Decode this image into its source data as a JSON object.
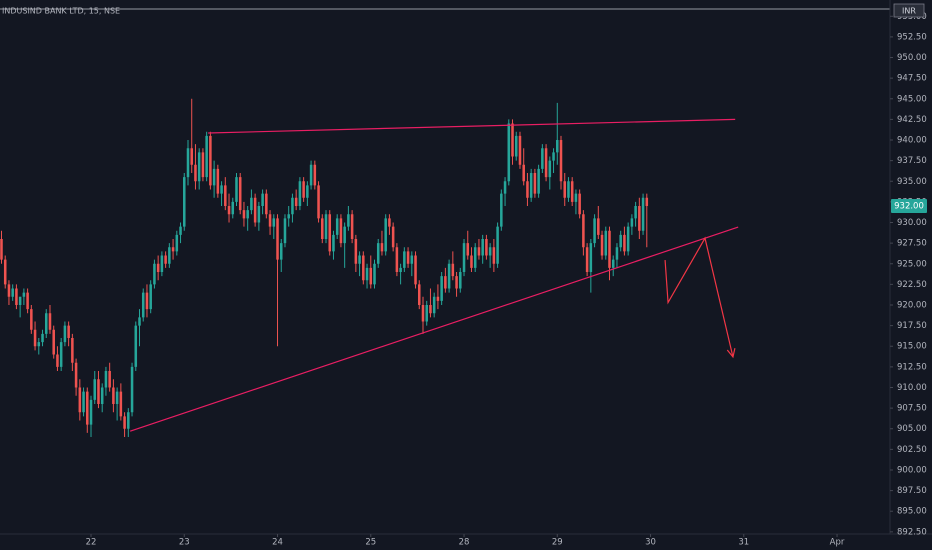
{
  "chart_data": {
    "type": "candlestick",
    "title": "INDUSIND BANK LTD, 15, NSE",
    "currency": "INR",
    "up_color": "#26a69a",
    "down_color": "#ef5350",
    "grid": false,
    "xlim": [
      -0.4,
      238.2
    ],
    "xticks": [
      {
        "value": 24,
        "label": "22"
      },
      {
        "value": 49,
        "label": "23"
      },
      {
        "value": 74,
        "label": "24"
      },
      {
        "value": 99,
        "label": "25"
      },
      {
        "value": 124,
        "label": "28"
      },
      {
        "value": 149,
        "label": "29"
      },
      {
        "value": 174,
        "label": "30"
      },
      {
        "value": 199,
        "label": "31"
      },
      {
        "value": 224,
        "label": "Apr"
      }
    ],
    "ylim": [
      892.24,
      955.76
    ],
    "yticks": [
      {
        "value": 892.5,
        "label": "892.50"
      },
      {
        "value": 895,
        "label": "895.00"
      },
      {
        "value": 897.5,
        "label": "897.50"
      },
      {
        "value": 900,
        "label": "900.00"
      },
      {
        "value": 902.5,
        "label": "902.50"
      },
      {
        "value": 905,
        "label": "905.00"
      },
      {
        "value": 907.5,
        "label": "907.50"
      },
      {
        "value": 910,
        "label": "910.00"
      },
      {
        "value": 912.5,
        "label": "912.50"
      },
      {
        "value": 915,
        "label": "915.00"
      },
      {
        "value": 917.5,
        "label": "917.50"
      },
      {
        "value": 920,
        "label": "920.00"
      },
      {
        "value": 922.5,
        "label": "922.50"
      },
      {
        "value": 925,
        "label": "925.00"
      },
      {
        "value": 927.5,
        "label": "927.50"
      },
      {
        "value": 930,
        "label": "930.00"
      },
      {
        "value": 932.5,
        "label": "932.50"
      },
      {
        "value": 935,
        "label": "935.00"
      },
      {
        "value": 937.5,
        "label": "937.50"
      },
      {
        "value": 940,
        "label": "940.00"
      },
      {
        "value": 942.5,
        "label": "942.50"
      },
      {
        "value": 945,
        "label": "945.00"
      },
      {
        "value": 947.5,
        "label": "947.50"
      },
      {
        "value": 950,
        "label": "950.00"
      },
      {
        "value": 952.5,
        "label": "952.50"
      },
      {
        "value": 955,
        "label": "955.00"
      }
    ],
    "last_price_label": "932.00",
    "ohlc": [
      [
        928,
        929,
        925,
        925.5
      ],
      [
        925.5,
        926,
        922,
        922.5
      ],
      [
        922.5,
        923,
        920,
        921
      ],
      [
        921,
        922.5,
        920.5,
        922
      ],
      [
        922,
        922.5,
        919.5,
        920
      ],
      [
        920,
        921,
        918.5,
        921
      ],
      [
        921,
        922,
        920,
        921.5
      ],
      [
        921.5,
        922,
        919,
        919.5
      ],
      [
        919.5,
        920,
        916.5,
        917
      ],
      [
        917,
        918,
        914.5,
        915
      ],
      [
        915,
        916,
        914,
        915.5
      ],
      [
        915.5,
        917,
        915,
        916.5
      ],
      [
        916.5,
        919.5,
        916,
        919
      ],
      [
        919,
        920,
        916.5,
        917
      ],
      [
        917,
        917.5,
        913.5,
        914
      ],
      [
        914,
        915,
        912,
        912.5
      ],
      [
        912.5,
        916,
        912,
        915.5
      ],
      [
        915.5,
        918,
        915,
        917.5
      ],
      [
        917.5,
        918,
        915,
        916
      ],
      [
        916,
        916.5,
        912,
        913
      ],
      [
        913,
        913.5,
        909,
        910
      ],
      [
        910,
        911,
        906,
        907
      ],
      [
        907,
        910,
        906.5,
        909.5
      ],
      [
        909.5,
        910,
        904.5,
        905.5
      ],
      [
        905.5,
        909,
        904,
        908.5
      ],
      [
        908.5,
        912,
        908,
        911
      ],
      [
        911,
        912,
        907.5,
        908
      ],
      [
        908,
        910.5,
        907,
        910
      ],
      [
        910,
        912.5,
        909,
        912
      ],
      [
        912,
        913,
        909.5,
        910
      ],
      [
        910,
        911,
        907,
        908
      ],
      [
        908,
        910,
        906,
        909.5
      ],
      [
        909.5,
        910.5,
        906,
        906.5
      ],
      [
        906.5,
        907,
        904,
        905
      ],
      [
        905,
        907.5,
        904,
        907
      ],
      [
        907,
        913,
        906.5,
        912.5
      ],
      [
        912.5,
        918,
        912,
        917.5
      ],
      [
        917.5,
        919.5,
        915,
        918.5
      ],
      [
        918.5,
        922,
        918,
        921.5
      ],
      [
        921.5,
        922.5,
        918.5,
        919.5
      ],
      [
        919.5,
        923,
        919,
        922.5
      ],
      [
        922.5,
        925.5,
        922,
        925
      ],
      [
        925,
        926,
        923,
        924
      ],
      [
        924,
        926.5,
        923.5,
        926
      ],
      [
        926,
        926.5,
        924.5,
        925
      ],
      [
        925,
        927.5,
        924.5,
        927
      ],
      [
        927,
        928,
        925.5,
        926.5
      ],
      [
        926.5,
        929,
        926,
        928.5
      ],
      [
        928.5,
        930,
        927.5,
        929.5
      ],
      [
        929.5,
        936,
        929,
        935.5
      ],
      [
        935.5,
        940,
        934.5,
        939
      ],
      [
        939,
        945,
        936,
        937
      ],
      [
        937,
        939.5,
        934,
        935
      ],
      [
        935,
        939,
        934,
        938.5
      ],
      [
        938.5,
        939,
        935,
        935.5
      ],
      [
        935.5,
        941,
        935,
        940.5
      ],
      [
        940.5,
        941,
        934,
        934.5
      ],
      [
        934.5,
        937.5,
        933,
        936.5
      ],
      [
        936.5,
        937,
        933,
        933.5
      ],
      [
        933.5,
        935,
        932,
        934.5
      ],
      [
        934.5,
        935.5,
        931.5,
        932
      ],
      [
        932,
        933.5,
        930,
        931
      ],
      [
        931,
        933,
        930.5,
        932.5
      ],
      [
        932.5,
        936,
        932,
        935.5
      ],
      [
        935.5,
        936,
        931,
        931.5
      ],
      [
        931.5,
        932.5,
        929.5,
        930.5
      ],
      [
        930.5,
        932,
        929,
        931.5
      ],
      [
        931.5,
        934,
        931,
        933
      ],
      [
        933,
        933.5,
        929.5,
        930
      ],
      [
        930,
        932.5,
        929,
        932
      ],
      [
        932,
        934,
        931,
        933.5
      ],
      [
        933.5,
        934,
        930.5,
        931
      ],
      [
        931,
        931.5,
        928.5,
        929.5
      ],
      [
        929.5,
        931,
        928,
        930.5
      ],
      [
        930.5,
        931,
        915,
        925.5
      ],
      [
        925.5,
        928,
        924,
        927.5
      ],
      [
        927.5,
        931,
        927,
        930.5
      ],
      [
        930.5,
        932,
        929.5,
        931
      ],
      [
        931,
        933.5,
        930,
        933
      ],
      [
        933,
        934,
        931.5,
        932
      ],
      [
        932,
        935.5,
        931.5,
        935
      ],
      [
        935,
        935.5,
        932.5,
        933
      ],
      [
        933,
        935,
        932,
        934.5
      ],
      [
        934.5,
        937.5,
        934,
        937
      ],
      [
        937,
        937.5,
        934,
        934.5
      ],
      [
        934.5,
        935,
        930,
        930.5
      ],
      [
        930.5,
        931,
        927.5,
        928
      ],
      [
        928,
        931.5,
        927.5,
        931
      ],
      [
        931,
        931.5,
        926,
        926.5
      ],
      [
        926.5,
        929,
        925.5,
        928.5
      ],
      [
        928.5,
        931,
        928,
        930.5
      ],
      [
        930.5,
        931,
        927,
        927.5
      ],
      [
        927.5,
        930,
        924.5,
        929.5
      ],
      [
        929.5,
        932,
        929,
        931
      ],
      [
        931,
        931.5,
        927.5,
        928
      ],
      [
        928,
        928.5,
        924,
        925
      ],
      [
        925,
        926.5,
        923.5,
        926
      ],
      [
        926,
        926.5,
        922.5,
        923
      ],
      [
        923,
        925,
        922,
        924.5
      ],
      [
        924.5,
        926,
        922,
        922.5
      ],
      [
        922.5,
        925.5,
        922,
        925
      ],
      [
        925,
        928,
        924.5,
        927.5
      ],
      [
        927.5,
        929,
        926,
        926.5
      ],
      [
        926.5,
        931,
        926,
        930.5
      ],
      [
        930.5,
        931,
        928.5,
        929.5
      ],
      [
        929.5,
        930,
        926.5,
        927
      ],
      [
        927,
        927.5,
        923.5,
        924
      ],
      [
        924,
        925,
        922.5,
        924.5
      ],
      [
        924.5,
        927,
        924,
        926.5
      ],
      [
        926.5,
        927,
        924.5,
        925
      ],
      [
        925,
        926.5,
        923.5,
        926
      ],
      [
        926,
        926.5,
        922,
        922.5
      ],
      [
        922.5,
        923,
        919.5,
        920
      ],
      [
        920,
        921,
        916.5,
        918
      ],
      [
        918,
        920.5,
        917.5,
        920
      ],
      [
        920,
        922,
        918.5,
        919
      ],
      [
        919,
        921.5,
        918.5,
        921
      ],
      [
        921,
        922.5,
        919.5,
        920.5
      ],
      [
        920.5,
        924,
        920,
        923.5
      ],
      [
        923.5,
        924.5,
        921.5,
        922
      ],
      [
        922,
        925.5,
        921.5,
        925
      ],
      [
        925,
        926.5,
        923,
        923.5
      ],
      [
        923.5,
        924,
        921,
        922
      ],
      [
        922,
        924.5,
        921.5,
        924
      ],
      [
        924,
        928,
        923.5,
        927.5
      ],
      [
        927.5,
        929,
        925.5,
        926
      ],
      [
        926,
        927,
        924,
        924.5
      ],
      [
        924.5,
        927.5,
        924,
        927
      ],
      [
        927,
        928,
        925.5,
        926
      ],
      [
        926,
        928.5,
        925,
        928
      ],
      [
        928,
        928.5,
        925.5,
        926
      ],
      [
        926,
        927.5,
        924.5,
        927
      ],
      [
        927,
        928,
        924,
        925
      ],
      [
        925,
        930,
        924.5,
        929.5
      ],
      [
        929.5,
        934,
        929,
        933.5
      ],
      [
        933.5,
        935.5,
        932,
        935
      ],
      [
        935,
        942.5,
        934.5,
        942
      ],
      [
        942,
        942.5,
        937,
        938
      ],
      [
        938,
        941,
        937.5,
        940.5
      ],
      [
        940.5,
        941,
        936.5,
        937
      ],
      [
        937,
        939,
        934.5,
        935
      ],
      [
        935,
        936,
        932,
        933
      ],
      [
        933,
        936.5,
        932.5,
        936
      ],
      [
        936,
        936.5,
        933,
        933.5
      ],
      [
        933.5,
        937,
        933,
        936.5
      ],
      [
        936.5,
        939.5,
        936,
        939
      ],
      [
        939,
        939.5,
        935,
        935.5
      ],
      [
        935.5,
        938,
        934,
        937.5
      ],
      [
        937.5,
        939,
        936,
        938.5
      ],
      [
        938.5,
        944.5,
        937,
        940
      ],
      [
        940,
        940.5,
        934,
        935
      ],
      [
        935,
        936,
        932,
        933
      ],
      [
        933,
        935.5,
        932.5,
        935
      ],
      [
        935,
        935.5,
        932,
        932.5
      ],
      [
        932.5,
        934,
        931,
        933.5
      ],
      [
        933.5,
        934,
        930.5,
        931
      ],
      [
        931,
        931.5,
        926,
        927
      ],
      [
        927,
        927.5,
        923.5,
        924
      ],
      [
        924,
        928,
        921.5,
        927.5
      ],
      [
        927.5,
        931,
        927,
        930.5
      ],
      [
        930.5,
        932,
        928,
        928.5
      ],
      [
        928.5,
        929,
        925.5,
        926
      ],
      [
        926,
        929.5,
        925.5,
        929
      ],
      [
        929,
        929.5,
        923,
        924.5
      ],
      [
        924.5,
        926,
        923.5,
        925.5
      ],
      [
        925.5,
        927.5,
        924.5,
        927
      ],
      [
        927,
        929,
        926.5,
        928.5
      ],
      [
        928.5,
        929.5,
        926,
        926.5
      ],
      [
        926.5,
        930,
        926,
        929.5
      ],
      [
        929.5,
        931,
        928.5,
        930.5
      ],
      [
        930.5,
        932.5,
        929.5,
        932
      ],
      [
        932,
        933,
        928,
        929
      ],
      [
        929,
        933.5,
        928.5,
        933
      ],
      [
        933,
        933.5,
        927,
        932
      ]
    ],
    "drawings": [
      {
        "color": "#e91e63",
        "x": [
          55.4,
          196.7
        ],
        "y": [
          940.85,
          942.5
        ]
      },
      {
        "color": "#e91e63",
        "x": [
          34.5,
          197.5
        ],
        "y": [
          904.7,
          929.45
        ]
      },
      {
        "color": "#f23645",
        "x": [
          177.9,
          178.7,
          188.6,
          196.1
        ],
        "y": [
          925.45,
          920.3,
          928.1,
          913.7
        ],
        "arrow": true
      }
    ]
  }
}
